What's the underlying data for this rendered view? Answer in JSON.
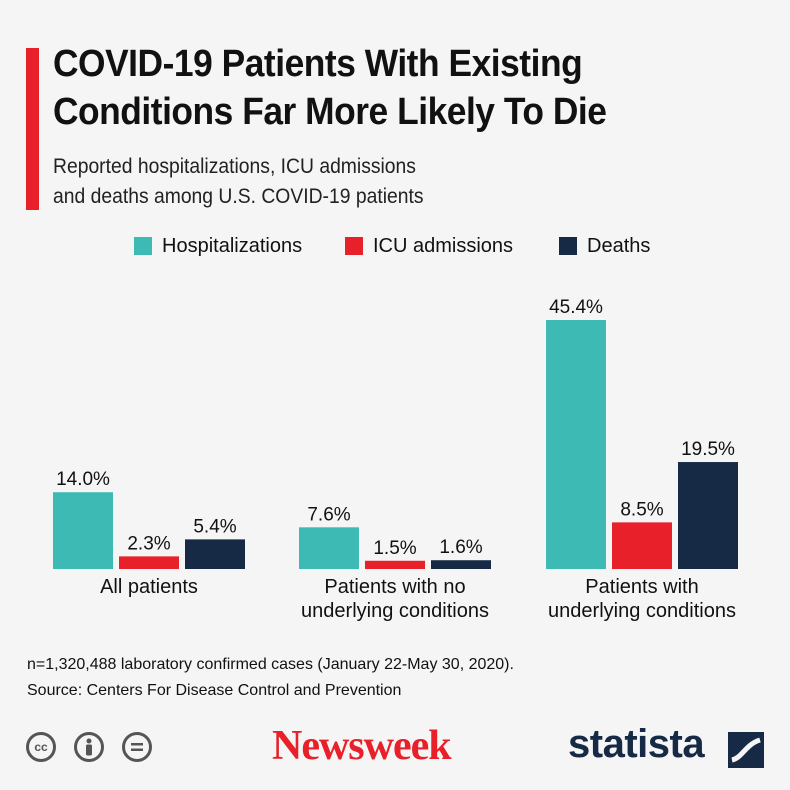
{
  "title_line1": "COVID-19 Patients With Existing",
  "title_line2": "Conditions Far More Likely To Die",
  "subtitle_line1": "Reported hospitalizations, ICU admissions",
  "subtitle_line2": "and deaths among U.S. COVID-19 patients",
  "footnote": "n=1,320,488 laboratory confirmed cases (January 22-May 30, 2020).",
  "source": "Source: Centers For Disease Control and Prevention",
  "brand_newsweek": "Newsweek",
  "brand_statista": "statista",
  "license_icons": [
    "cc-icon",
    "attribution-icon",
    "no-derivatives-icon"
  ],
  "colors": {
    "accent": "#e8202a",
    "hospitalizations": "#3cbab3",
    "icu": "#e8202a",
    "deaths": "#162a45"
  },
  "chart_data": {
    "type": "bar",
    "title": "COVID-19 Patients With Existing Conditions Far More Likely To Die",
    "categories": [
      [
        "All patients"
      ],
      [
        "Patients with no",
        "underlying conditions"
      ],
      [
        "Patients with",
        "underlying conditions"
      ]
    ],
    "series": [
      {
        "name": "Hospitalizations",
        "color": "#3cbab3",
        "values": [
          14.0,
          7.6,
          45.4
        ],
        "labels": [
          "14.0%",
          "7.6%",
          "45.4%"
        ]
      },
      {
        "name": "ICU admissions",
        "color": "#e8202a",
        "values": [
          2.3,
          1.5,
          8.5
        ],
        "labels": [
          "2.3%",
          "1.5%",
          "8.5%"
        ]
      },
      {
        "name": "Deaths",
        "color": "#162a45",
        "values": [
          5.4,
          1.6,
          19.5
        ],
        "labels": [
          "5.4%",
          "1.6%",
          "19.5%"
        ]
      }
    ],
    "ylim": [
      0,
      45.4
    ],
    "grid": false,
    "legend": "top-center"
  }
}
